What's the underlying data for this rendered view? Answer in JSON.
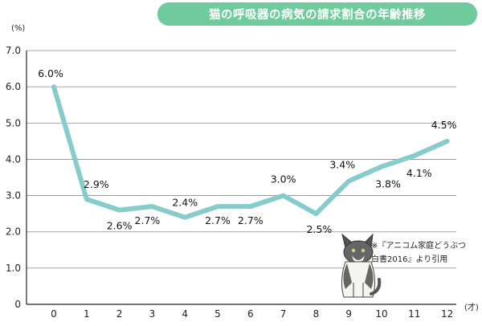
{
  "chart_data": {
    "type": "line",
    "title": "猫の呼吸器の病気の請求割合の年齢推移",
    "y_unit": "(%)",
    "x_unit": "(才)",
    "x": [
      "0",
      "1",
      "2",
      "3",
      "4",
      "5",
      "6",
      "7",
      "8",
      "9",
      "10",
      "11",
      "12"
    ],
    "values": [
      6.0,
      2.9,
      2.6,
      2.7,
      2.4,
      2.7,
      2.7,
      3.0,
      2.5,
      3.4,
      3.8,
      4.1,
      4.5
    ],
    "data_labels": [
      "6.0%",
      "2.9%",
      "2.6%",
      "2.7%",
      "2.4%",
      "2.7%",
      "2.7%",
      "3.0%",
      "2.5%",
      "3.4%",
      "3.8%",
      "4.1%",
      "4.5%"
    ],
    "y_ticks": [
      "0",
      "1.0",
      "2.0",
      "3.0",
      "4.0",
      "5.0",
      "6.0",
      "7.0"
    ],
    "ylim": [
      0,
      7
    ],
    "grid": true,
    "line_color": "#86cccc",
    "title_color": "#6fcb9c",
    "source_note": [
      "※『アニコム家庭どうぶつ",
      "白書2016』より引用"
    ]
  }
}
